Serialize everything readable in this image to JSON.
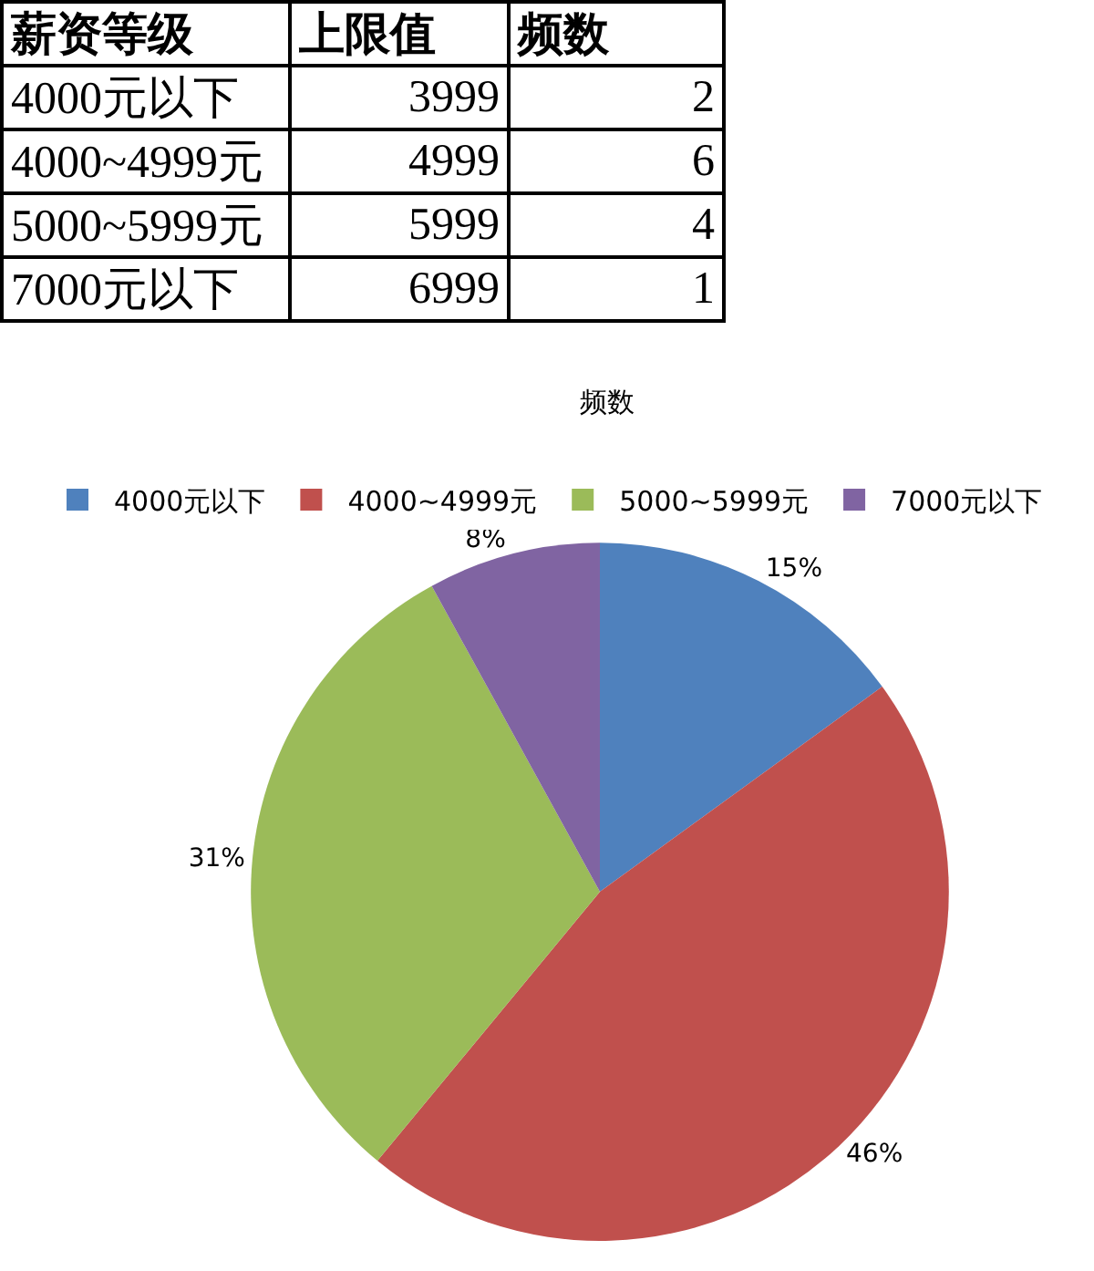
{
  "chart_data": {
    "type": "pie",
    "title": "频数",
    "categories": [
      "4000元以下",
      "4000~4999元",
      "5000~5999元",
      "7000元以下"
    ],
    "values": [
      15,
      46,
      31,
      8
    ],
    "value_labels": [
      "15%",
      "46%",
      "31%",
      "8%"
    ],
    "colors": [
      "#4f81bd",
      "#c0504d",
      "#9bbb59",
      "#8064a2"
    ],
    "legend": "top",
    "annotations": [
      "薪资等级",
      "上限值",
      "频数",
      "4000元以下",
      "3999",
      "2",
      "4000~4999元",
      "4999",
      "6",
      "5000~5999元",
      "5999",
      "4",
      "7000元以下",
      "6999",
      "1"
    ]
  }
}
